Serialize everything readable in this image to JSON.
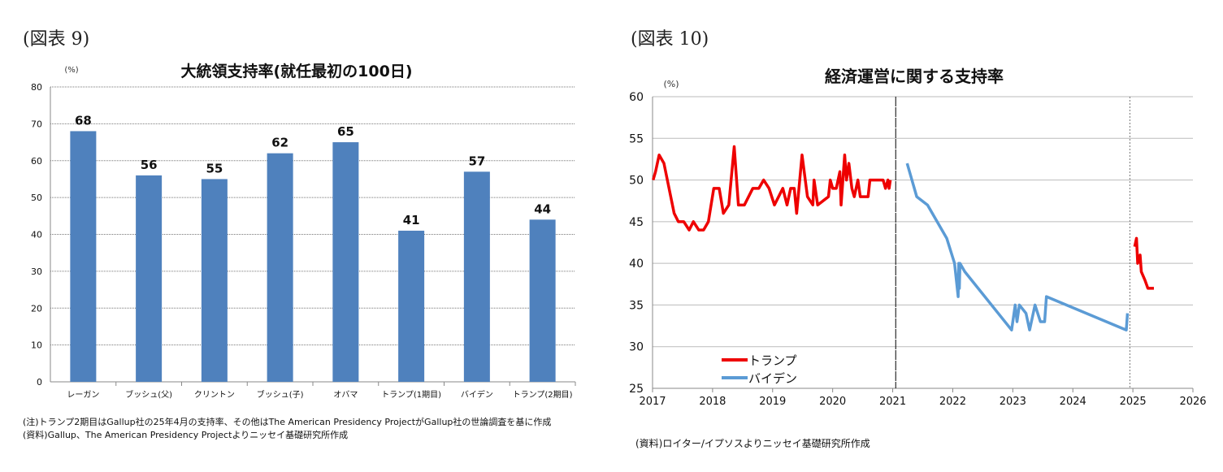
{
  "left": {
    "figure_label": "(図表 9)",
    "note1": "(注)トランプ2期目はGallup社の25年4月の支持率、その他はThe American Presidency ProjectがGallup社の世論調査を基に作成",
    "note2": "(資料)Gallup、The American Presidency Projectよりニッセイ基礎研究所作成"
  },
  "right": {
    "figure_label": "(図表 10)",
    "note": "(資料)ロイター/イプソスよりニッセイ基礎研究所作成"
  },
  "chart_data": [
    {
      "type": "bar",
      "title": "大統領支持率(就任最初の100日)",
      "ylabel": "(%)",
      "ylim": [
        0,
        80
      ],
      "yticks": [
        0,
        10,
        20,
        30,
        40,
        50,
        60,
        70,
        80
      ],
      "grid": true,
      "categories": [
        "レーガン",
        "ブッシュ(父)",
        "クリントン",
        "ブッシュ(子)",
        "オバマ",
        "トランプ(1期目)",
        "バイデン",
        "トランプ(2期目)"
      ],
      "values": [
        68,
        56,
        55,
        62,
        65,
        41,
        57,
        44
      ],
      "color": "#4f81bd"
    },
    {
      "type": "line",
      "title": "経済運営に関する支持率",
      "ylabel": "(%)",
      "ylim": [
        25,
        60
      ],
      "xlim": [
        2017,
        2026
      ],
      "yticks": [
        25,
        30,
        35,
        40,
        45,
        50,
        55,
        60
      ],
      "xticks": [
        2017,
        2018,
        2019,
        2020,
        2021,
        2022,
        2023,
        2024,
        2025,
        2026
      ],
      "grid": true,
      "legend_placement": "bottom-left",
      "vlines": [
        {
          "x": 2021.05,
          "style": "solid"
        },
        {
          "x": 2024.95,
          "style": "dotted"
        }
      ],
      "series": [
        {
          "name": "トランプ",
          "color": "#ee0000",
          "segments": [
            [
              [
                2017.01,
                50
              ],
              [
                2017.05,
                51
              ],
              [
                2017.11,
                53
              ],
              [
                2017.19,
                52
              ],
              [
                2017.36,
                46
              ],
              [
                2017.43,
                45
              ],
              [
                2017.52,
                45
              ],
              [
                2017.61,
                44
              ],
              [
                2017.68,
                45
              ],
              [
                2017.77,
                44
              ],
              [
                2017.85,
                44
              ],
              [
                2017.93,
                45
              ],
              [
                2018.02,
                49
              ],
              [
                2018.11,
                49
              ],
              [
                2018.18,
                46
              ],
              [
                2018.27,
                47
              ],
              [
                2018.36,
                54
              ],
              [
                2018.43,
                47
              ],
              [
                2018.53,
                47
              ],
              [
                2018.67,
                49
              ],
              [
                2018.77,
                49
              ],
              [
                2018.85,
                50
              ],
              [
                2018.94,
                49
              ],
              [
                2019.03,
                47
              ],
              [
                2019.17,
                49
              ],
              [
                2019.24,
                47
              ],
              [
                2019.3,
                49
              ],
              [
                2019.36,
                49
              ],
              [
                2019.4,
                46
              ],
              [
                2019.49,
                53
              ],
              [
                2019.58,
                48
              ],
              [
                2019.67,
                47
              ],
              [
                2019.69,
                50
              ],
              [
                2019.75,
                47
              ],
              [
                2019.93,
                48
              ],
              [
                2019.96,
                50
              ],
              [
                2020.0,
                49
              ],
              [
                2020.06,
                49
              ],
              [
                2020.12,
                51
              ],
              [
                2020.14,
                47
              ],
              [
                2020.2,
                53
              ],
              [
                2020.23,
                50
              ],
              [
                2020.27,
                52
              ],
              [
                2020.32,
                49
              ],
              [
                2020.36,
                48
              ],
              [
                2020.42,
                50
              ],
              [
                2020.46,
                48
              ],
              [
                2020.59,
                48
              ],
              [
                2020.62,
                50
              ],
              [
                2020.84,
                50
              ],
              [
                2020.88,
                49
              ],
              [
                2020.92,
                50
              ],
              [
                2020.94,
                49
              ],
              [
                2020.96,
                50
              ]
            ],
            [
              [
                2025.03,
                42
              ],
              [
                2025.06,
                43
              ],
              [
                2025.08,
                40
              ],
              [
                2025.12,
                41
              ],
              [
                2025.14,
                39
              ],
              [
                2025.2,
                38
              ],
              [
                2025.25,
                37
              ],
              [
                2025.35,
                37
              ]
            ]
          ]
        },
        {
          "name": "バイデン",
          "color": "#5b9bd5",
          "segments": [
            [
              [
                2021.24,
                52
              ],
              [
                2021.4,
                48
              ],
              [
                2021.58,
                47
              ],
              [
                2021.9,
                43
              ],
              [
                2022.03,
                40
              ],
              [
                2022.09,
                36
              ],
              [
                2022.1,
                40
              ],
              [
                2022.11,
                37
              ],
              [
                2022.12,
                40
              ],
              [
                2022.2,
                39
              ],
              [
                2022.98,
                32
              ],
              [
                2023.04,
                35
              ],
              [
                2023.07,
                33
              ],
              [
                2023.11,
                35
              ],
              [
                2023.22,
                34
              ],
              [
                2023.28,
                32
              ],
              [
                2023.37,
                35
              ],
              [
                2023.46,
                33
              ],
              [
                2023.53,
                33
              ],
              [
                2023.56,
                36
              ],
              [
                2024.89,
                32
              ],
              [
                2024.91,
                34
              ]
            ]
          ]
        }
      ]
    }
  ]
}
